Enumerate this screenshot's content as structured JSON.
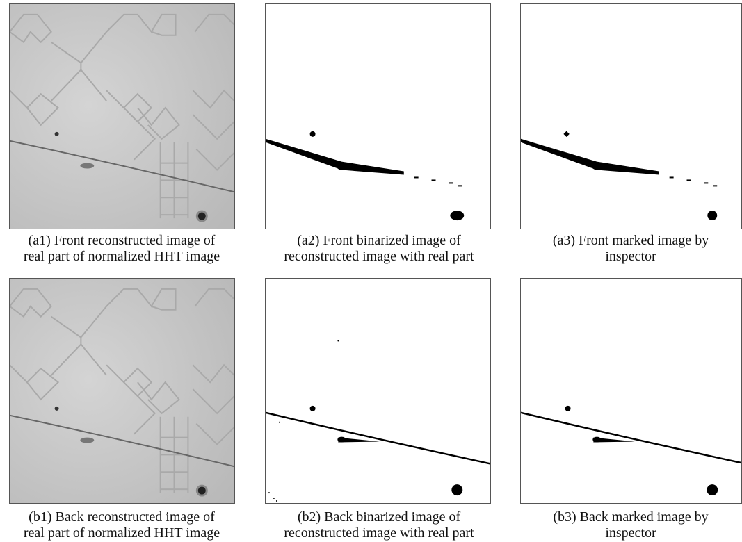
{
  "figure": {
    "panels": [
      {
        "caption": [
          "(a1) Front reconstructed image of",
          "real part of normalized HHT image"
        ]
      },
      {
        "caption": [
          "(a2) Front binarized image of",
          "reconstructed image with real part"
        ]
      },
      {
        "caption": [
          "(a3) Front marked image by",
          "inspector"
        ]
      },
      {
        "caption": [
          "(b1) Back reconstructed image of",
          "real part of normalized HHT image"
        ]
      },
      {
        "caption": [
          "(b2) Back binarized image of",
          "reconstructed image with real part"
        ]
      },
      {
        "caption": [
          "(b3) Back marked image by",
          "inspector"
        ]
      }
    ]
  }
}
